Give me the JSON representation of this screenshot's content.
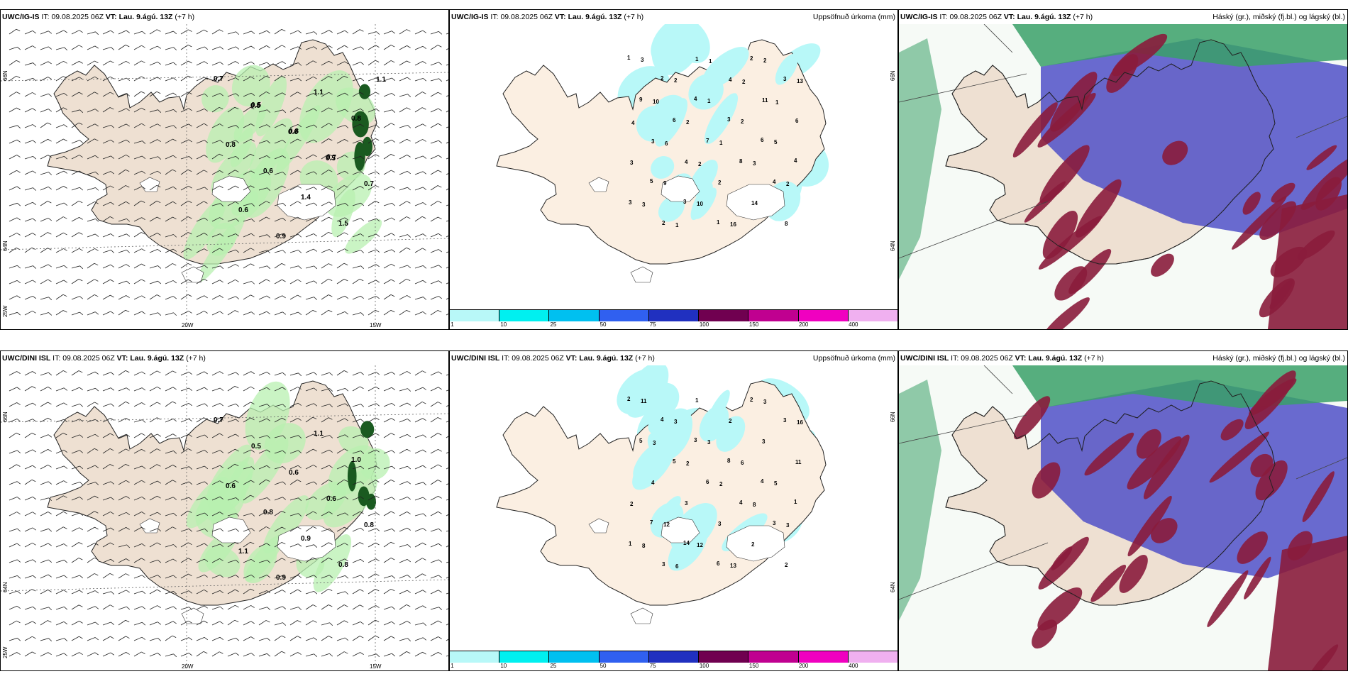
{
  "rows": [
    {
      "wind": {
        "title_model": "UWC/IG-IS",
        "title_it_label": "IT:",
        "title_it": "09.08.2025 06Z",
        "title_vt_label": "VT:",
        "title_vt": "Lau. 9.ágú. 13Z",
        "title_lead": "(+7 h)",
        "labels": [
          "0.7",
          "0.5",
          "0.8",
          "0.7",
          "0.7",
          "0.6",
          "0.9",
          "1.1",
          "0.8",
          "0.8",
          "0.6",
          "1.4",
          "1.5",
          "1.1",
          "0.8",
          "0.6",
          "0.5"
        ]
      },
      "precip": {
        "title_model": "UWC/IG-IS",
        "title_it_label": "IT:",
        "title_it": "09.08.2025 06Z",
        "title_vt_label": "VT:",
        "title_vt": "Lau. 9.ágú. 13Z",
        "title_lead": "(+7 h)",
        "title_right": "Uppsöfnuð úrkoma (mm)",
        "numbers": [
          "1",
          "2",
          "4",
          "3",
          "6",
          "4",
          "5",
          "3",
          "1",
          "2",
          "3",
          "9",
          "6",
          "7",
          "8",
          "4",
          "3",
          "2",
          "1",
          "4",
          "11",
          "6",
          "3",
          "4",
          "2",
          "14",
          "8",
          "3",
          "2",
          "1",
          "2",
          "5",
          "3",
          "9",
          "10",
          "16",
          "2",
          "13",
          "10",
          "2",
          "1",
          "3",
          "2",
          "3",
          "1",
          "1",
          "2",
          "1",
          "4",
          "6",
          "2"
        ]
      },
      "cloud": {
        "title_model": "UWC/IG-IS",
        "title_it_label": "IT:",
        "title_it": "09.08.2025 06Z",
        "title_vt_label": "VT:",
        "title_vt": "Lau. 9.ágú. 13Z",
        "title_lead": "(+7 h)",
        "title_right": "Háský (gr.), miðský (fj.bl.) og lágský (bl.)"
      }
    },
    {
      "wind": {
        "title_model": "UWC/DINI ISL",
        "title_it_label": "IT:",
        "title_it": "09.08.2025 06Z",
        "title_vt_label": "VT:",
        "title_vt": "Lau. 9.ágú. 13Z",
        "title_lead": "(+7 h)",
        "labels": [
          "0.7",
          "0.5",
          "0.6",
          "0.6",
          "0.8",
          "1.1",
          "0.9",
          "1.1",
          "1.0",
          "0.6",
          "0.8",
          "0.9",
          "0.8"
        ]
      },
      "precip": {
        "title_model": "UWC/DINI ISL",
        "title_it_label": "IT:",
        "title_it": "09.08.2025 06Z",
        "title_vt_label": "VT:",
        "title_vt": "Lau. 9.ágú. 13Z",
        "title_lead": "(+7 h)",
        "title_right": "Uppsöfnuð úrkoma (mm)",
        "numbers": [
          "2",
          "4",
          "3",
          "8",
          "4",
          "1",
          "7",
          "14",
          "6",
          "2",
          "3",
          "5",
          "5",
          "6",
          "4",
          "3",
          "1",
          "3",
          "1",
          "2",
          "3",
          "11",
          "4",
          "3",
          "3",
          "2",
          "2",
          "11",
          "3",
          "3",
          "6",
          "5",
          "2",
          "12",
          "12",
          "13",
          "3",
          "16",
          "3",
          "2",
          "2",
          "8",
          "3",
          "8",
          "6"
        ]
      },
      "cloud": {
        "title_model": "UWC/DINI ISL",
        "title_it_label": "IT:",
        "title_it": "09.08.2025 06Z",
        "title_vt_label": "VT:",
        "title_vt": "Lau. 9.ágú. 13Z",
        "title_lead": "(+7 h)",
        "title_right": "Háský (gr.), miðský (fj.bl.) og lágský (bl.)"
      }
    }
  ],
  "axes": {
    "lat_66": "66N",
    "lat_64": "64N",
    "lat_64_alt": "64N",
    "lon_25": "25W",
    "lon_20": "20W",
    "lon_15": "15W"
  },
  "colorbar": {
    "ticks": [
      "1",
      "10",
      "25",
      "50",
      "75",
      "100",
      "150",
      "200",
      "400"
    ],
    "colors": [
      "#b8f8f8",
      "#00f0f0",
      "#00c0f0",
      "#3060f0",
      "#2030c0",
      "#700050",
      "#c00090",
      "#f000c0",
      "#f0b0f0"
    ]
  },
  "colors": {
    "land": "#eee0d2",
    "land_precip": "#fbefe2",
    "precip_light": "#b8f8f8",
    "wind_green_light": "#b8f0b0",
    "wind_green_dark": "#1a5a20",
    "cloud_high": "#3aa068",
    "cloud_mid": "#5050c8",
    "cloud_low": "#8a1c3c"
  }
}
